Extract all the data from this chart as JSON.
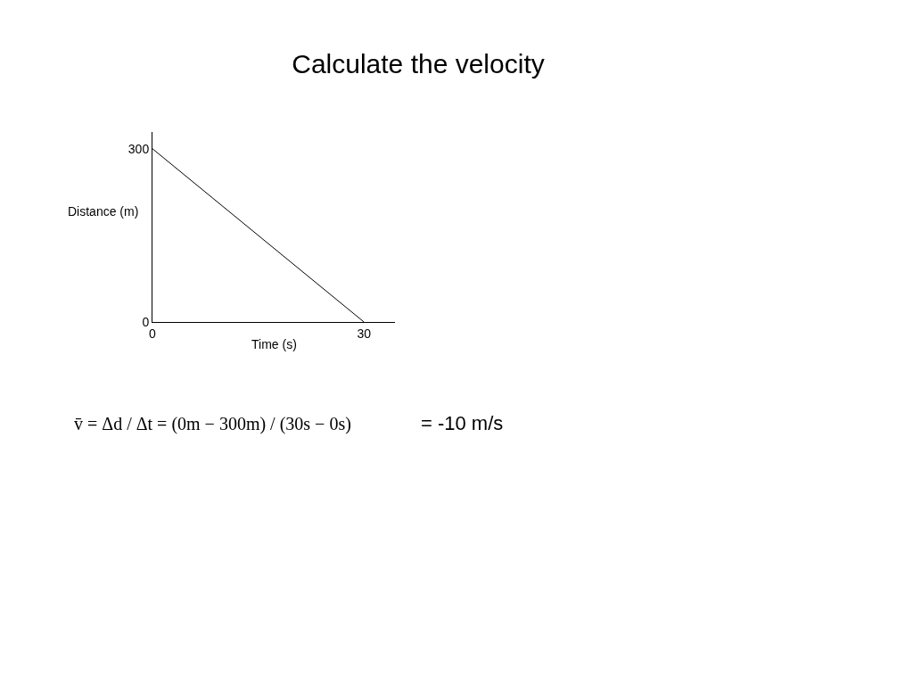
{
  "chart_data": {
    "type": "line",
    "title": "Calculate the velocity",
    "xlabel": "Time (s)",
    "ylabel": "Distance (m)",
    "x": [
      0,
      30
    ],
    "series": [
      {
        "color": "#000000",
        "values": [
          300,
          0
        ]
      }
    ],
    "xlim": [
      0,
      34.4
    ],
    "ylim": [
      0,
      329
    ],
    "xticks": [
      0,
      30
    ],
    "yticks": [
      0,
      300
    ],
    "legend": false,
    "marker": "none",
    "line_style": "solid",
    "annotations": [
      "v̄ = Δd / Δt = (0m − 300m) / (30s − 0s)",
      "= -10 m/s"
    ]
  }
}
